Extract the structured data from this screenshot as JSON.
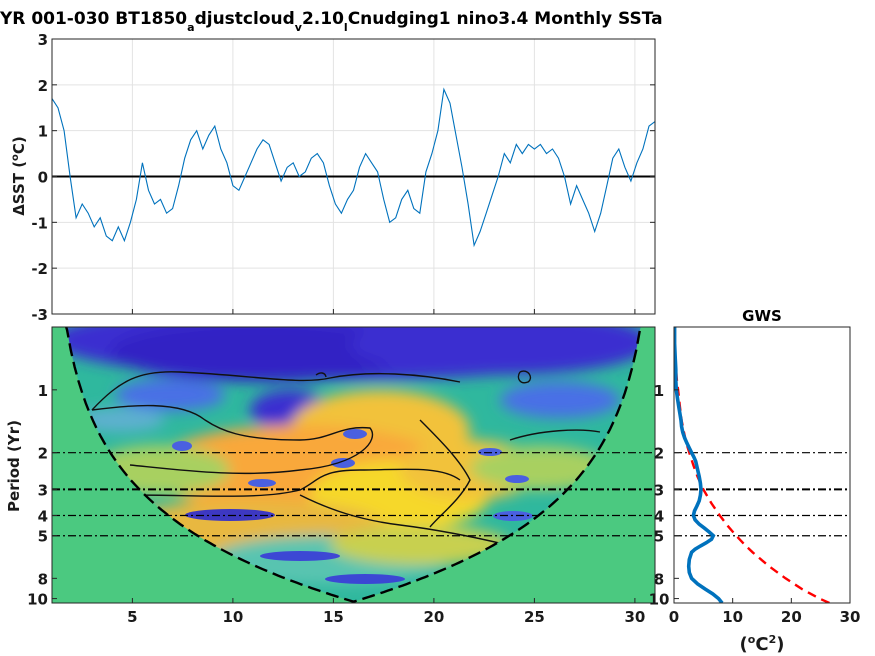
{
  "title": {
    "p1": "YR 001-030 BT1850",
    "s1": "a",
    "p2": "djustcloud",
    "s2": "v",
    "p3": "2.10",
    "s3": "l",
    "p4": "Cnudging1 nino3.4 Monthly SSTa"
  },
  "chart_data": [
    {
      "type": "line",
      "panel": "time series",
      "ylabel_prefix": "ΔSST (",
      "ylabel_sup": "o",
      "ylabel_suffix": "C)",
      "ylim": [
        -3,
        3
      ],
      "yticks": [
        "3",
        "2",
        "1",
        "0",
        "-1",
        "-2",
        "-3"
      ],
      "xlim": [
        1,
        31
      ],
      "grid": true,
      "line_color": "#0072BD",
      "zero_line": 0,
      "x": [
        1.0,
        1.3,
        1.6,
        1.9,
        2.2,
        2.5,
        2.8,
        3.1,
        3.4,
        3.7,
        4.0,
        4.3,
        4.6,
        4.9,
        5.2,
        5.5,
        5.8,
        6.1,
        6.4,
        6.7,
        7.0,
        7.3,
        7.6,
        7.9,
        8.2,
        8.5,
        8.8,
        9.1,
        9.4,
        9.7,
        10.0,
        10.3,
        10.6,
        10.9,
        11.2,
        11.5,
        11.8,
        12.1,
        12.4,
        12.7,
        13.0,
        13.3,
        13.6,
        13.9,
        14.2,
        14.5,
        14.8,
        15.1,
        15.4,
        15.7,
        16.0,
        16.3,
        16.6,
        16.9,
        17.2,
        17.5,
        17.8,
        18.1,
        18.4,
        18.7,
        19.0,
        19.3,
        19.6,
        19.9,
        20.2,
        20.5,
        20.8,
        21.1,
        21.4,
        21.7,
        22.0,
        22.3,
        22.6,
        22.9,
        23.2,
        23.5,
        23.8,
        24.1,
        24.4,
        24.7,
        25.0,
        25.3,
        25.6,
        25.9,
        26.2,
        26.5,
        26.8,
        27.1,
        27.4,
        27.7,
        28.0,
        28.3,
        28.6,
        28.9,
        29.2,
        29.5,
        29.8,
        30.1,
        30.4,
        30.7,
        31.0
      ],
      "y": [
        1.7,
        1.5,
        1.0,
        0.0,
        -0.9,
        -0.6,
        -0.8,
        -1.1,
        -0.9,
        -1.3,
        -1.4,
        -1.1,
        -1.4,
        -1.0,
        -0.5,
        0.3,
        -0.3,
        -0.6,
        -0.5,
        -0.8,
        -0.7,
        -0.2,
        0.4,
        0.8,
        1.0,
        0.6,
        0.9,
        1.1,
        0.6,
        0.3,
        -0.2,
        -0.3,
        0.0,
        0.3,
        0.6,
        0.8,
        0.7,
        0.3,
        -0.1,
        0.2,
        0.3,
        0.0,
        0.1,
        0.4,
        0.5,
        0.3,
        -0.2,
        -0.6,
        -0.8,
        -0.5,
        -0.3,
        0.2,
        0.5,
        0.3,
        0.1,
        -0.5,
        -1.0,
        -0.9,
        -0.5,
        -0.3,
        -0.7,
        -0.8,
        0.1,
        0.5,
        1.0,
        1.9,
        1.6,
        0.9,
        0.2,
        -0.6,
        -1.5,
        -1.2,
        -0.8,
        -0.4,
        0.0,
        0.5,
        0.3,
        0.7,
        0.5,
        0.7,
        0.6,
        0.7,
        0.5,
        0.6,
        0.4,
        0.0,
        -0.6,
        -0.2,
        -0.5,
        -0.8,
        -1.2,
        -0.8,
        -0.2,
        0.4,
        0.6,
        0.2,
        -0.1,
        0.3,
        0.6,
        1.1,
        1.2
      ],
      "xticks": [
        5,
        10,
        15,
        20,
        25,
        30
      ]
    },
    {
      "type": "heatmap",
      "panel": "wavelet power spectrum",
      "ylabel": "Period (Yr)",
      "yscale": "log",
      "ylim": [
        0.5,
        10.5
      ],
      "yticks": [
        1,
        2,
        3,
        4,
        5,
        8,
        10
      ],
      "xlim": [
        1,
        31
      ],
      "xticks": [
        5,
        10,
        15,
        20,
        25,
        30
      ],
      "colormap": "parula",
      "cone_of_influence": true,
      "reference_periods": [
        2,
        3,
        4,
        5
      ]
    },
    {
      "type": "line",
      "panel": "global wavelet spectrum",
      "title": "GWS",
      "xlabel_prefix": "(",
      "xlabel_base": "o",
      "xlabel_mid": "C",
      "xlabel_sup": "2",
      "xlabel_suffix": ")",
      "xlim": [
        0,
        30
      ],
      "xticks": [
        0,
        10,
        20,
        30
      ],
      "yscale": "log",
      "ylim": [
        0.5,
        10.5
      ],
      "yticks": [
        1,
        2,
        3,
        4,
        5,
        8,
        10
      ],
      "series": [
        {
          "color": "#0072BD",
          "period": [
            0.5,
            0.6,
            0.7,
            0.8,
            0.9,
            1.0,
            1.1,
            1.2,
            1.3,
            1.4,
            1.5,
            1.6,
            1.7,
            1.8,
            1.9,
            2.0,
            2.1,
            2.2,
            2.4,
            2.6,
            2.8,
            3.0,
            3.2,
            3.4,
            3.6,
            3.8,
            4.0,
            4.2,
            4.4,
            4.6,
            4.8,
            5.0,
            5.2,
            5.4,
            5.6,
            5.8,
            6.0,
            6.5,
            7.0,
            7.5,
            8.0,
            8.5,
            9.0,
            9.5,
            10.0,
            10.5
          ],
          "power": [
            0.1,
            0.1,
            0.2,
            0.3,
            0.3,
            0.4,
            0.6,
            0.8,
            1.0,
            1.2,
            1.3,
            1.5,
            1.8,
            2.2,
            2.6,
            3.0,
            3.4,
            3.7,
            4.0,
            4.3,
            4.5,
            4.6,
            4.5,
            4.3,
            3.9,
            3.5,
            3.3,
            3.6,
            4.3,
            5.2,
            6.0,
            6.7,
            6.4,
            5.5,
            4.5,
            3.6,
            3.0,
            2.6,
            2.5,
            2.6,
            3.0,
            4.0,
            5.3,
            6.6,
            7.6,
            8.2
          ]
        },
        {
          "color": "#FF0000",
          "dashed": true,
          "period": [
            0.5,
            0.6,
            0.7,
            0.8,
            0.9,
            1.0,
            1.2,
            1.4,
            1.6,
            1.8,
            2.0,
            2.3,
            2.6,
            3.0,
            3.5,
            4.0,
            4.5,
            5.0,
            5.5,
            6.0,
            7.0,
            8.0,
            9.0,
            10.0,
            10.5
          ],
          "power": [
            0.05,
            0.1,
            0.2,
            0.35,
            0.5,
            0.7,
            1.0,
            1.3,
            1.7,
            2.1,
            2.6,
            3.3,
            4.0,
            5.0,
            6.4,
            7.8,
            9.2,
            10.6,
            12.0,
            13.4,
            16.2,
            19.0,
            21.8,
            24.8,
            26.5
          ]
        }
      ],
      "reference_periods": [
        2,
        3,
        4,
        5
      ]
    }
  ]
}
